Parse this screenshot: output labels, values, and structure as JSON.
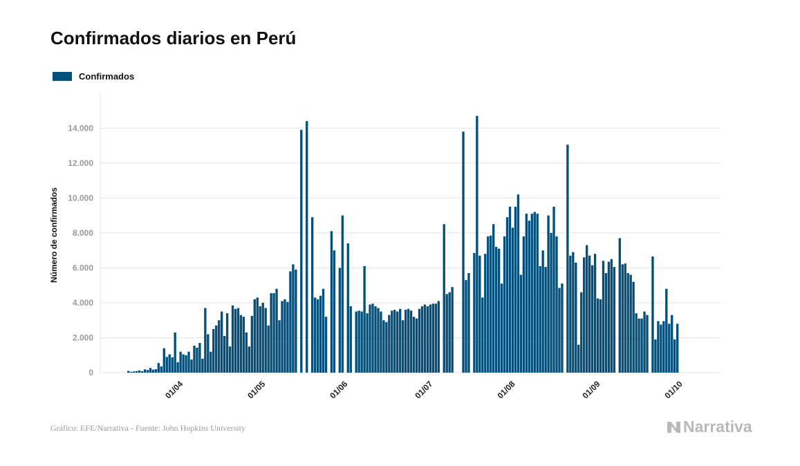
{
  "title": "Confirmados diarios en Perú",
  "source": "Gráfico: EFE/Narrativa - Fuente: John Hopkins University",
  "brand": "Narrativa",
  "colors": {
    "bar": "#04507a",
    "grid": "#e4e4e4"
  },
  "chart_data": {
    "type": "bar",
    "title": "Confirmados diarios en Perú",
    "xlabel": "",
    "ylabel": "Número de confirmados",
    "ylim": [
      0,
      15000
    ],
    "yticks": [
      0,
      2000,
      4000,
      6000,
      8000,
      10000,
      12000,
      14000
    ],
    "ytick_labels": [
      "0",
      "2.000",
      "4.000",
      "6.000",
      "8.000",
      "10.000",
      "12.000",
      "14.000"
    ],
    "xtick_labels": [
      "01/04",
      "01/05",
      "01/06",
      "01/07",
      "01/08",
      "01/09",
      "01/10"
    ],
    "xtick_index": [
      20,
      50,
      80,
      111,
      141,
      172,
      202
    ],
    "grid": true,
    "legend_position": "top-left",
    "series": [
      {
        "name": "Confirmados",
        "values": [
          100,
          50,
          70,
          90,
          130,
          80,
          190,
          150,
          270,
          170,
          200,
          550,
          360,
          1400,
          900,
          1050,
          880,
          2300,
          600,
          1200,
          1050,
          1000,
          1200,
          750,
          1550,
          1430,
          1700,
          800,
          3700,
          2200,
          1200,
          2500,
          2700,
          3000,
          3500,
          2100,
          3400,
          1500,
          3850,
          3650,
          3700,
          3300,
          3200,
          2300,
          1500,
          3250,
          4200,
          4300,
          3800,
          4000,
          3700,
          2700,
          4550,
          4550,
          4800,
          3000,
          4100,
          4200,
          4050,
          5800,
          6200,
          5900,
          0,
          13900,
          0,
          14400,
          0,
          8900,
          4300,
          4200,
          4400,
          4800,
          3200,
          0,
          8100,
          7000,
          0,
          6000,
          9000,
          0,
          7400,
          3800,
          0,
          3500,
          3550,
          3500,
          6100,
          3400,
          3900,
          3950,
          3800,
          3700,
          3500,
          3000,
          2900,
          3300,
          3550,
          3600,
          3500,
          3650,
          3000,
          3600,
          3650,
          3550,
          3200,
          3100,
          3650,
          3800,
          3900,
          3800,
          3900,
          3950,
          3950,
          4100,
          0,
          8500,
          4500,
          4600,
          4900,
          0,
          0,
          0,
          13800,
          5300,
          5700,
          0,
          6850,
          14700,
          6700,
          4300,
          6800,
          7800,
          7850,
          8500,
          7200,
          7100,
          5100,
          7800,
          8900,
          9500,
          8300,
          9500,
          10200,
          5600,
          7800,
          9100,
          8700,
          9100,
          9200,
          9100,
          6100,
          7000,
          6050,
          9000,
          8000,
          9500,
          7800,
          4850,
          5100,
          0,
          13050,
          6700,
          6900,
          6300,
          1600,
          4600,
          6600,
          7300,
          6700,
          6150,
          6800,
          4250,
          4200,
          6400,
          5700,
          6350,
          6500,
          6050,
          0,
          7700,
          6200,
          6250,
          5700,
          5600,
          5200,
          3400,
          3100,
          3100,
          3500,
          3300,
          0,
          6650,
          1900,
          2950,
          2750,
          2950,
          4800,
          2800,
          3300,
          1900,
          2800
        ]
      }
    ]
  }
}
